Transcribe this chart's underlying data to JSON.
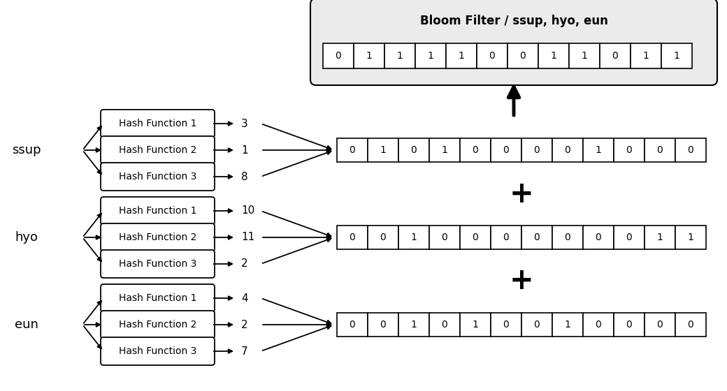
{
  "title": "Bloom Filter / ssup, hyo, eun",
  "bloom_filter": [
    0,
    1,
    1,
    1,
    1,
    0,
    0,
    1,
    1,
    0,
    1,
    1
  ],
  "rows": [
    {
      "label": "ssup",
      "hashes": [
        "Hash Function 1",
        "Hash Function 2",
        "Hash Function 3"
      ],
      "hash_values": [
        "3",
        "1",
        "8"
      ],
      "bits": [
        0,
        1,
        0,
        1,
        0,
        0,
        0,
        0,
        1,
        0,
        0,
        0
      ]
    },
    {
      "label": "hyo",
      "hashes": [
        "Hash Function 1",
        "Hash Function 2",
        "Hash Function 3"
      ],
      "hash_values": [
        "10",
        "11",
        "2"
      ],
      "bits": [
        0,
        0,
        1,
        0,
        0,
        0,
        0,
        0,
        0,
        0,
        1,
        1
      ]
    },
    {
      "label": "eun",
      "hashes": [
        "Hash Function 1",
        "Hash Function 2",
        "Hash Function 3"
      ],
      "hash_values": [
        "4",
        "2",
        "7"
      ],
      "bits": [
        0,
        0,
        1,
        0,
        1,
        0,
        0,
        1,
        0,
        0,
        0,
        0
      ]
    }
  ],
  "bloom_outer_fill": "#ebebeb",
  "bloom_outer_edge": "#000000",
  "bit_fill": "#ffffff",
  "bit_edge": "#000000",
  "hash_box_fill": "#ffffff",
  "hash_box_edge": "#000000",
  "background": "#ffffff",
  "text_color": "#000000",
  "fontsize_label": 13,
  "fontsize_hash": 10,
  "fontsize_bits": 10,
  "fontsize_title": 12,
  "fontsize_hashval": 11,
  "fontsize_plus": 30
}
